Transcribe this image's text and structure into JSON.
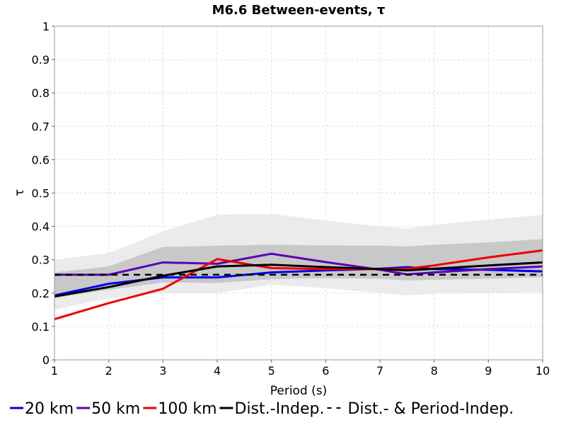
{
  "chart_data": {
    "type": "line",
    "title": "M6.6 Between-events, τ",
    "xlabel": "Period (s)",
    "ylabel": "τ",
    "xlim": [
      1,
      10
    ],
    "ylim": [
      0,
      1
    ],
    "xticks": [
      "1",
      "2",
      "3",
      "4",
      "5",
      "6",
      "7",
      "8",
      "9",
      "10"
    ],
    "yticks": [
      "0",
      "0.1",
      "0.2",
      "0.3",
      "0.4",
      "0.5",
      "0.6",
      "0.7",
      "0.8",
      "0.9",
      "1"
    ],
    "grid": true,
    "legend_position": "bottom",
    "bands": [
      {
        "color": "#ebebeb",
        "x": [
          1,
          2,
          3,
          4,
          5,
          6,
          7,
          7.5,
          8,
          9,
          10
        ],
        "upper": [
          0.3,
          0.32,
          0.385,
          0.435,
          0.437,
          0.418,
          0.4,
          0.393,
          0.405,
          0.42,
          0.435
        ],
        "lower": [
          0.15,
          0.185,
          0.2,
          0.2,
          0.225,
          0.215,
          0.2,
          0.193,
          0.198,
          0.2,
          0.203
        ]
      },
      {
        "color": "#c8c8c8",
        "x": [
          1,
          2,
          3,
          4,
          5,
          6,
          7,
          7.5,
          8,
          9,
          10
        ],
        "upper": [
          0.262,
          0.28,
          0.338,
          0.342,
          0.345,
          0.343,
          0.342,
          0.34,
          0.345,
          0.352,
          0.362
        ],
        "lower": [
          0.185,
          0.21,
          0.232,
          0.23,
          0.242,
          0.245,
          0.243,
          0.238,
          0.24,
          0.243,
          0.248
        ]
      }
    ],
    "series": [
      {
        "name": "20 km",
        "color": "#0000ee",
        "style": "solid",
        "x": [
          1,
          2,
          3,
          4,
          5,
          6,
          7,
          7.5,
          8,
          9,
          10
        ],
        "y": [
          0.193,
          0.228,
          0.247,
          0.247,
          0.262,
          0.268,
          0.273,
          0.278,
          0.272,
          0.27,
          0.265
        ]
      },
      {
        "name": "50 km",
        "color": "#5a00b4",
        "style": "solid",
        "x": [
          1,
          2,
          3,
          4,
          5,
          6,
          7,
          7.5,
          8,
          9,
          10
        ],
        "y": [
          0.255,
          0.255,
          0.292,
          0.288,
          0.318,
          0.293,
          0.27,
          0.256,
          0.262,
          0.272,
          0.28
        ]
      },
      {
        "name": "100 km",
        "color": "#ee0000",
        "style": "solid",
        "x": [
          1,
          2,
          3,
          4,
          5,
          6,
          7,
          7.5,
          8,
          9,
          10
        ],
        "y": [
          0.122,
          0.17,
          0.213,
          0.302,
          0.275,
          0.272,
          0.272,
          0.273,
          0.283,
          0.307,
          0.328
        ]
      },
      {
        "name": "Dist.-Indep.",
        "color": "#000000",
        "style": "solid",
        "x": [
          1,
          2,
          3,
          4,
          5,
          6,
          7,
          7.5,
          8,
          9,
          10
        ],
        "y": [
          0.19,
          0.218,
          0.252,
          0.28,
          0.285,
          0.278,
          0.272,
          0.268,
          0.273,
          0.283,
          0.292
        ]
      },
      {
        "name": "Dist.- & Period-Indep.",
        "color": "#000000",
        "style": "dashed",
        "x": [
          1,
          10
        ],
        "y": [
          0.255,
          0.255
        ]
      }
    ]
  }
}
